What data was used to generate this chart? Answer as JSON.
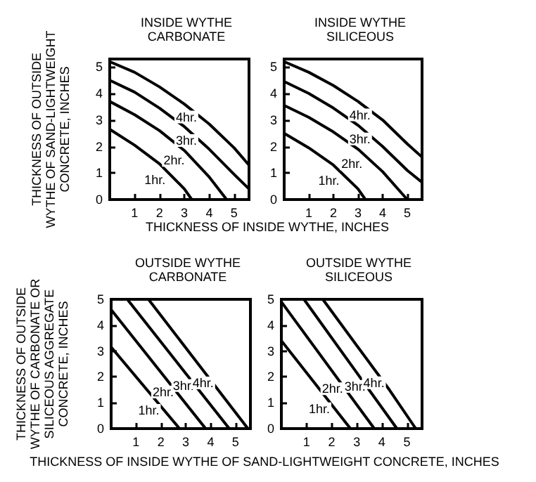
{
  "chart_data": [
    {
      "type": "line",
      "title": "INSIDE WYTHE\nCARBONATE",
      "xlabel": "THICKNESS OF INSIDE WYTHE, INCHES",
      "ylabel": "THICKNESS OF OUTSIDE\nWYTHE OF SAND-LIGHTWEIGHT\nCONCRETE, INCHES",
      "xlim": [
        0,
        5.6
      ],
      "ylim": [
        0,
        5.3
      ],
      "xticks": [
        1,
        2,
        3,
        4,
        5
      ],
      "yticks": [
        0,
        1,
        2,
        3,
        4,
        5
      ],
      "grid": false,
      "legend": false,
      "marker": "none",
      "line_style": "solid",
      "tick_labels": "xy",
      "series": [
        {
          "name": "1hr.",
          "color": "#000000",
          "x": [
            0,
            1,
            2,
            3,
            3.3
          ],
          "values": [
            2.65,
            2.05,
            1.35,
            0.4,
            0
          ]
        },
        {
          "name": "2hr.",
          "color": "#000000",
          "x": [
            0,
            1,
            2,
            3,
            4,
            4.7
          ],
          "values": [
            3.7,
            3.2,
            2.6,
            1.85,
            0.85,
            0
          ]
        },
        {
          "name": "3hr.",
          "color": "#000000",
          "x": [
            0,
            1,
            2,
            3,
            4,
            5,
            5.6
          ],
          "values": [
            4.5,
            4.05,
            3.45,
            2.75,
            1.9,
            0.95,
            0.4
          ]
        },
        {
          "name": "4hr.",
          "color": "#000000",
          "x": [
            0,
            1,
            2,
            3,
            4,
            5,
            5.6
          ],
          "values": [
            5.2,
            4.8,
            4.25,
            3.6,
            2.85,
            1.95,
            1.3
          ]
        }
      ]
    },
    {
      "type": "line",
      "title": "INSIDE WYTHE\nSILICEOUS",
      "xlim": [
        0,
        5.6
      ],
      "ylim": [
        0,
        5.3
      ],
      "xticks": [
        1,
        2,
        3,
        4,
        5
      ],
      "yticks": [
        0,
        1,
        2,
        3,
        4,
        5
      ],
      "grid": false,
      "legend": false,
      "marker": "none",
      "line_style": "solid",
      "tick_labels": "xy",
      "series": [
        {
          "name": "1hr.",
          "color": "#000000",
          "x": [
            0,
            1,
            2,
            3,
            3.3
          ],
          "values": [
            2.5,
            1.95,
            1.3,
            0.4,
            0
          ]
        },
        {
          "name": "2hr.",
          "color": "#000000",
          "x": [
            0,
            1,
            2,
            3,
            4,
            5
          ],
          "values": [
            3.55,
            3.1,
            2.55,
            1.9,
            1.05,
            0
          ]
        },
        {
          "name": "3hr.",
          "color": "#000000",
          "x": [
            0,
            1,
            2,
            3,
            4,
            5,
            5.6
          ],
          "values": [
            4.45,
            4.0,
            3.45,
            2.8,
            2.0,
            1.1,
            0.65
          ]
        },
        {
          "name": "4hr.",
          "color": "#000000",
          "x": [
            0,
            1,
            2,
            3,
            4,
            5,
            5.6
          ],
          "values": [
            5.2,
            4.8,
            4.3,
            3.7,
            3.0,
            2.1,
            1.6
          ]
        }
      ]
    },
    {
      "type": "line",
      "title": "OUTSIDE WYTHE\nCARBONATE",
      "xlabel": "THICKNESS OF INSIDE WYTHE OF SAND-LIGHTWEIGHT CONCRETE, INCHES",
      "ylabel": "THICKNESS OF OUTSIDE\nWYTHE OF CARBONATE OR\nSILICEOUS AGGREGATE\nCONCRETE, INCHES",
      "xlim": [
        0,
        5.6
      ],
      "ylim": [
        0,
        5
      ],
      "xticks": [
        1,
        2,
        3,
        4,
        5
      ],
      "yticks": [
        0,
        1,
        2,
        3,
        4,
        5
      ],
      "grid": false,
      "legend": false,
      "marker": "none",
      "line_style": "solid",
      "tick_labels": "xy",
      "series": [
        {
          "name": "1hr.",
          "color": "#000000",
          "x": [
            0,
            2.75
          ],
          "values": [
            3.15,
            0
          ]
        },
        {
          "name": "2hr.",
          "color": "#000000",
          "x": [
            0,
            3.8
          ],
          "values": [
            4.6,
            0
          ]
        },
        {
          "name": "3hr.",
          "color": "#000000",
          "x": [
            0.65,
            4.75
          ],
          "values": [
            5,
            0
          ]
        },
        {
          "name": "4hr.",
          "color": "#000000",
          "x": [
            1.5,
            5.5
          ],
          "values": [
            5,
            0
          ]
        }
      ]
    },
    {
      "type": "line",
      "title": "OUTSIDE WYTHE\nSILICEOUS",
      "xlim": [
        0,
        5.6
      ],
      "ylim": [
        0,
        5
      ],
      "xticks": [
        1,
        2,
        3,
        4,
        5
      ],
      "yticks": [
        0,
        1,
        2,
        3,
        4,
        5
      ],
      "grid": false,
      "legend": false,
      "marker": "none",
      "line_style": "solid",
      "tick_labels": "xy",
      "series": [
        {
          "name": "1hr.",
          "color": "#000000",
          "x": [
            0,
            2.75
          ],
          "values": [
            3.4,
            0
          ]
        },
        {
          "name": "2hr.",
          "color": "#000000",
          "x": [
            0,
            3.7
          ],
          "values": [
            4.9,
            0
          ]
        },
        {
          "name": "3hr.",
          "color": "#000000",
          "x": [
            0.9,
            4.6
          ],
          "values": [
            5,
            0
          ]
        },
        {
          "name": "4hr.",
          "color": "#000000",
          "x": [
            1.65,
            4.3,
            5.35
          ],
          "values": [
            5,
            1.5,
            0
          ]
        }
      ]
    }
  ]
}
